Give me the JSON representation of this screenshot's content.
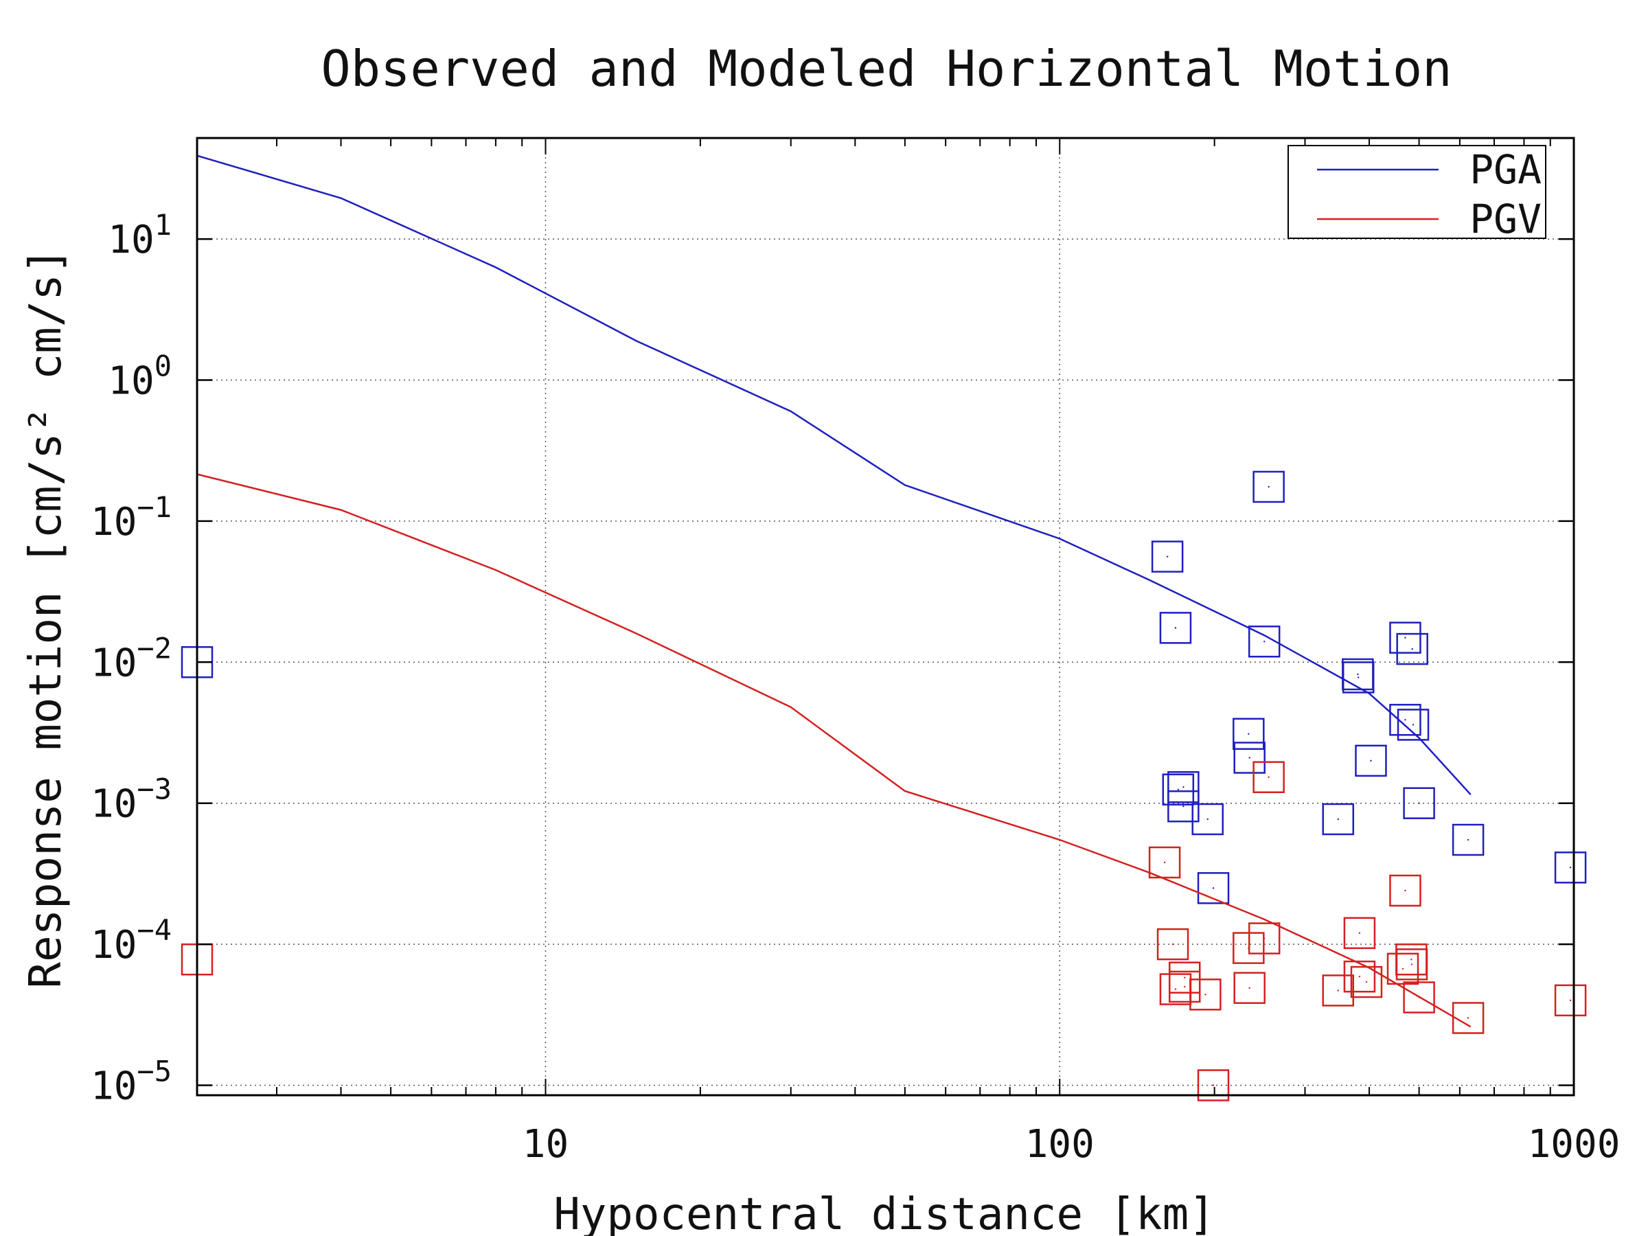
{
  "chart_data": {
    "type": "scatter",
    "title": "Observed and Modeled Horizontal Motion",
    "xlabel": "Hypocentral distance [km]",
    "ylabel": "Response motion  [cm/s² cm/s]",
    "xscale": "log",
    "yscale": "log",
    "xlim": [
      2.1,
      1000
    ],
    "ylim": [
      8.5e-06,
      52
    ],
    "grid": true,
    "legend_position": "top-right",
    "x_ticks": [
      {
        "value": 10,
        "label": "10"
      },
      {
        "value": 100,
        "label": "100"
      },
      {
        "value": 1000,
        "label": "1000"
      }
    ],
    "y_ticks": [
      {
        "value": 10,
        "base": "10",
        "exp": "1"
      },
      {
        "value": 1,
        "base": "10",
        "exp": "0"
      },
      {
        "value": 0.1,
        "base": "10",
        "exp": "−1"
      },
      {
        "value": 0.01,
        "base": "10",
        "exp": "−2"
      },
      {
        "value": 0.001,
        "base": "10",
        "exp": "−3"
      },
      {
        "value": 0.0001,
        "base": "10",
        "exp": "−4"
      },
      {
        "value": 1e-05,
        "base": "10",
        "exp": "−5"
      }
    ],
    "series": [
      {
        "name": "PGA",
        "color": "#1f1fbf",
        "line": [
          [
            2.1,
            39
          ],
          [
            4,
            19.5
          ],
          [
            8,
            6.3
          ],
          [
            15,
            1.9
          ],
          [
            30,
            0.6
          ],
          [
            50,
            0.18
          ],
          [
            100,
            0.075
          ],
          [
            150,
            0.038
          ],
          [
            250,
            0.0155
          ],
          [
            400,
            0.006
          ],
          [
            500,
            0.0029
          ],
          [
            630,
            0.00115
          ]
        ],
        "points": [
          [
            2.1,
            0.01
          ],
          [
            162,
            0.056
          ],
          [
            168,
            0.0175
          ],
          [
            170,
            0.00125
          ],
          [
            174,
            0.0013
          ],
          [
            174,
            0.00095
          ],
          [
            194,
            0.00077
          ],
          [
            199,
            0.00025
          ],
          [
            233,
            0.0031
          ],
          [
            234,
            0.0021
          ],
          [
            250,
            0.014
          ],
          [
            255,
            0.175
          ],
          [
            348,
            0.00077
          ],
          [
            380,
            0.0082
          ],
          [
            381,
            0.0078
          ],
          [
            403,
            0.002
          ],
          [
            470,
            0.0149
          ],
          [
            470,
            0.0039
          ],
          [
            485,
            0.0124
          ],
          [
            487,
            0.0036
          ],
          [
            500,
            0.001
          ],
          [
            623,
            0.00055
          ],
          [
            985,
            0.00035
          ]
        ]
      },
      {
        "name": "PGV",
        "color": "#d42020",
        "line": [
          [
            2.1,
            0.215
          ],
          [
            4,
            0.12
          ],
          [
            8,
            0.045
          ],
          [
            15,
            0.016
          ],
          [
            30,
            0.0048
          ],
          [
            50,
            0.00122
          ],
          [
            100,
            0.00055
          ],
          [
            150,
            0.00032
          ],
          [
            250,
            0.00015
          ],
          [
            400,
            6.8e-05
          ],
          [
            630,
            2.6e-05
          ]
        ],
        "points": [
          [
            2.1,
            7.8e-05
          ],
          [
            160,
            0.00038
          ],
          [
            166,
            0.0001
          ],
          [
            168,
            4.8e-05
          ],
          [
            175,
            5.8e-05
          ],
          [
            175,
            5e-05
          ],
          [
            192,
            4.4e-05
          ],
          [
            199,
            1e-05
          ],
          [
            233,
            9.4e-05
          ],
          [
            234,
            4.9e-05
          ],
          [
            250,
            0.00011
          ],
          [
            255,
            0.00153
          ],
          [
            348,
            4.7e-05
          ],
          [
            383,
            0.00012
          ],
          [
            383,
            5.9e-05
          ],
          [
            395,
            5.4e-05
          ],
          [
            465,
            6.7e-05
          ],
          [
            470,
            0.00024
          ],
          [
            483,
            7.8e-05
          ],
          [
            484,
            7.2e-05
          ],
          [
            500,
            4.2e-05
          ],
          [
            623,
            3e-05
          ],
          [
            985,
            4e-05
          ]
        ]
      }
    ]
  }
}
